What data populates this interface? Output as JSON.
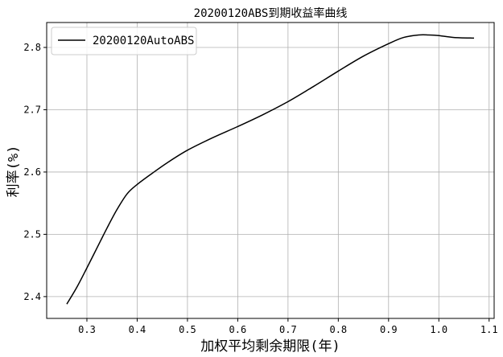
{
  "chart_data": {
    "type": "line",
    "title": "20200120ABS到期收益率曲线",
    "xlabel": "加权平均剩余期限(年)",
    "ylabel": "利率(%)",
    "xlim": [
      0.22,
      1.11
    ],
    "ylim": [
      2.365,
      2.84
    ],
    "xticks": [
      "0.3",
      "0.4",
      "0.5",
      "0.6",
      "0.7",
      "0.8",
      "0.9",
      "1.0",
      "1.1"
    ],
    "yticks": [
      "2.4",
      "2.5",
      "2.6",
      "2.7",
      "2.8"
    ],
    "grid": true,
    "legend_position": "top-left",
    "series": [
      {
        "name": "20200120AutoABS",
        "color": "#000000",
        "x": [
          0.26,
          0.28,
          0.3,
          0.32,
          0.34,
          0.36,
          0.38,
          0.4,
          0.43,
          0.46,
          0.5,
          0.55,
          0.6,
          0.65,
          0.7,
          0.75,
          0.8,
          0.85,
          0.9,
          0.93,
          0.96,
          0.98,
          1.0,
          1.03,
          1.07
        ],
        "y": [
          2.388,
          2.415,
          2.446,
          2.478,
          2.51,
          2.54,
          2.565,
          2.58,
          2.598,
          2.615,
          2.635,
          2.655,
          2.673,
          2.692,
          2.713,
          2.737,
          2.762,
          2.786,
          2.806,
          2.816,
          2.82,
          2.82,
          2.819,
          2.816,
          2.815
        ]
      }
    ]
  }
}
